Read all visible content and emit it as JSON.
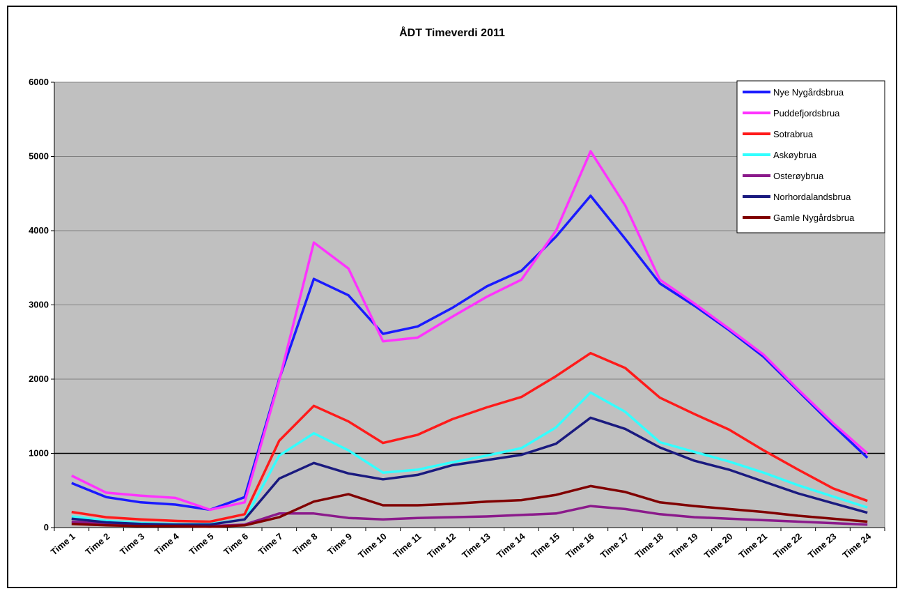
{
  "chart_data": {
    "type": "line",
    "title": "ÅDT Timeverdi 2011",
    "xlabel": "",
    "ylabel": "",
    "ylim": [
      0,
      6000
    ],
    "yticks": [
      0,
      1000,
      2000,
      3000,
      4000,
      5000,
      6000
    ],
    "grid": true,
    "legend_position": "top-right",
    "categories": [
      "Time 1",
      "Time 2",
      "Time 3",
      "Time 4",
      "Time 5",
      "Time 6",
      "Time 7",
      "Time 8",
      "Time 9",
      "Time 10",
      "Time 11",
      "Time 12",
      "Time 13",
      "Time 14",
      "Time 15",
      "Time 16",
      "Time 17",
      "Time 18",
      "Time 19",
      "Time 20",
      "Time 21",
      "Time 22",
      "Time 23",
      "Time 24"
    ],
    "series": [
      {
        "name": "Nye Nygårdsbrua",
        "color": "#1a1aff",
        "values": [
          600,
          410,
          340,
          310,
          240,
          410,
          2000,
          3350,
          3130,
          2610,
          2710,
          2960,
          3250,
          3460,
          3920,
          4470,
          3890,
          3290,
          2990,
          2660,
          2300,
          1840,
          1380,
          940
        ]
      },
      {
        "name": "Puddefjordsbrua",
        "color": "#ff33ff",
        "values": [
          700,
          470,
          430,
          400,
          240,
          340,
          1980,
          3840,
          3490,
          2510,
          2560,
          2840,
          3110,
          3340,
          4000,
          5070,
          4340,
          3340,
          3020,
          2680,
          2330,
          1860,
          1410,
          1000
        ]
      },
      {
        "name": "Sotrabrua",
        "color": "#ff1a1a",
        "values": [
          210,
          140,
          110,
          90,
          80,
          180,
          1170,
          1640,
          1430,
          1140,
          1250,
          1460,
          1620,
          1760,
          2040,
          2350,
          2150,
          1750,
          1530,
          1320,
          1040,
          780,
          530,
          360
        ]
      },
      {
        "name": "Askøybrua",
        "color": "#33ffff",
        "values": [
          150,
          90,
          60,
          50,
          50,
          110,
          970,
          1270,
          1040,
          740,
          780,
          880,
          970,
          1070,
          1350,
          1820,
          1560,
          1150,
          1020,
          890,
          740,
          570,
          420,
          270
        ]
      },
      {
        "name": "Osterøybrua",
        "color": "#8b1a8b",
        "values": [
          80,
          50,
          30,
          20,
          20,
          40,
          190,
          190,
          130,
          110,
          130,
          140,
          150,
          170,
          190,
          290,
          250,
          180,
          140,
          120,
          100,
          80,
          60,
          40
        ]
      },
      {
        "name": "Norhordalandsbrua",
        "color": "#1a1a7f",
        "values": [
          120,
          70,
          50,
          40,
          40,
          110,
          660,
          870,
          730,
          650,
          710,
          840,
          910,
          980,
          1130,
          1480,
          1330,
          1080,
          900,
          780,
          620,
          460,
          330,
          200
        ]
      },
      {
        "name": "Gamle Nygårdsbrua",
        "color": "#800000",
        "values": [
          50,
          30,
          20,
          20,
          10,
          30,
          140,
          350,
          450,
          300,
          300,
          320,
          350,
          370,
          440,
          560,
          480,
          340,
          290,
          250,
          210,
          160,
          120,
          80
        ]
      }
    ]
  }
}
